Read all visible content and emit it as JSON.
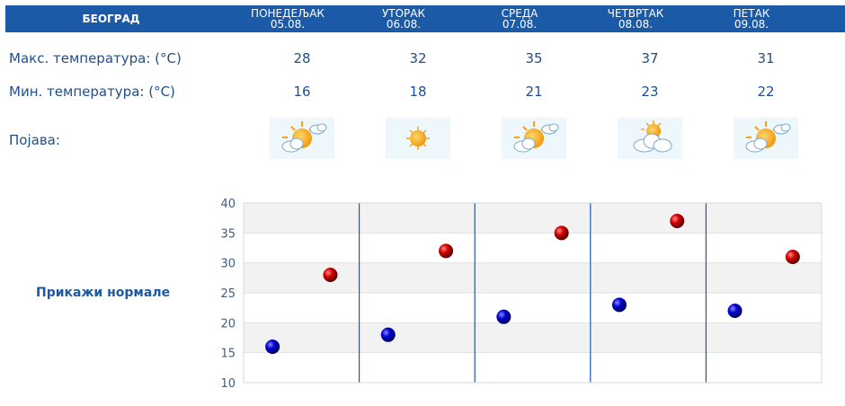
{
  "header": {
    "city": "БЕОГРАД",
    "days": [
      {
        "name": "ПОНЕДЕЉАК",
        "date": "05.08."
      },
      {
        "name": "УТОРАК",
        "date": "06.08."
      },
      {
        "name": "СРЕДА",
        "date": "07.08."
      },
      {
        "name": "ЧЕТВРТАК",
        "date": "08.08."
      },
      {
        "name": "ПЕТАК",
        "date": "09.08."
      }
    ]
  },
  "rows": {
    "max_label": "Макс. температура: (°C)",
    "min_label": "Мин. температура: (°C)",
    "phenomenon_label": "Појава:",
    "max_values": [
      "28",
      "32",
      "35",
      "37",
      "31"
    ],
    "min_values": [
      "16",
      "18",
      "21",
      "23",
      "22"
    ],
    "icons": [
      "sun-behind-cloud-icon",
      "sun-icon",
      "sun-behind-cloud-icon",
      "cloud-with-sun-icon",
      "sun-behind-cloud-icon"
    ]
  },
  "show_normals": "Прикажи нормале",
  "colors": {
    "header_bg": "#1a5aa6",
    "text": "#1f4f8a",
    "max_point": "#cc0000",
    "min_point": "#0000cc"
  },
  "chart_data": {
    "type": "scatter",
    "categories": [
      "05.08.",
      "06.08.",
      "07.08.",
      "08.08.",
      "09.08."
    ],
    "series": [
      {
        "values": [
          16,
          18,
          21,
          23,
          22
        ],
        "color": "#0000cc"
      },
      {
        "values": [
          28,
          32,
          35,
          37,
          31
        ],
        "color": "#cc0000"
      }
    ],
    "yticks": [
      "40",
      "35",
      "30",
      "25",
      "20",
      "15",
      "10"
    ],
    "ylim": [
      10,
      40
    ],
    "grid": true
  }
}
